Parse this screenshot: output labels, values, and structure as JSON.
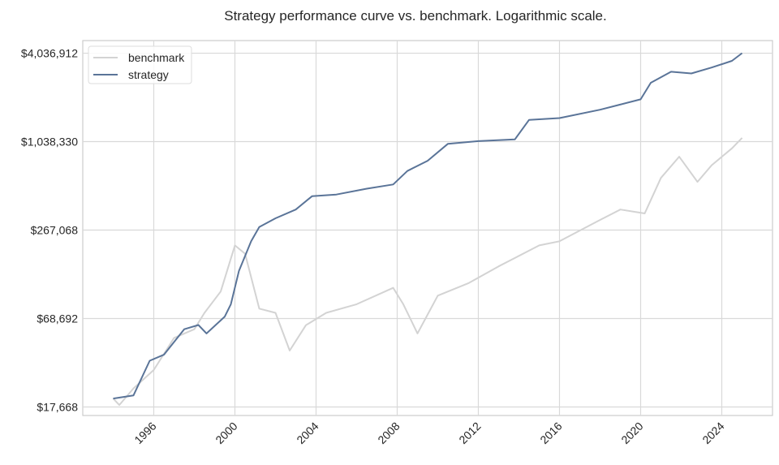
{
  "chart_data": {
    "type": "line",
    "title": "Strategy performance curve vs. benchmark. Logarithmic scale.",
    "xlabel": "",
    "ylabel": "",
    "y_scale": "log",
    "xlim": [
      1992.5,
      2026.5
    ],
    "ylim": [
      15500,
      4900000
    ],
    "y_ticks": [
      17668,
      68692,
      267068,
      1038330,
      4036912
    ],
    "y_tick_labels": [
      "$17,668",
      "$68,692",
      "$267,068",
      "$1,038,330",
      "$4,036,912"
    ],
    "x_ticks": [
      1996,
      2000,
      2004,
      2008,
      2012,
      2016,
      2020,
      2024
    ],
    "x_tick_labels": [
      "1996",
      "2000",
      "2004",
      "2008",
      "2012",
      "2016",
      "2020",
      "2024"
    ],
    "grid": true,
    "legend_placement": "top-left",
    "series": [
      {
        "name": "benchmark",
        "color": "#d3d3d3",
        "x": [
          1994.0,
          1994.3,
          1995,
          1996,
          1997,
          1998,
          1998.5,
          1999.3,
          2000.0,
          2000.5,
          2001.2,
          2002,
          2002.7,
          2003.5,
          2004.5,
          2006,
          2007.8,
          2008.3,
          2009.0,
          2010,
          2011.5,
          2013,
          2015,
          2016,
          2018,
          2019,
          2020.2,
          2021,
          2021.9,
          2022.8,
          2023.5,
          2024.5,
          2025
        ],
        "y": [
          20100,
          18200,
          23500,
          31200,
          51000,
          58300,
          75000,
          104000,
          211000,
          186000,
          80000,
          75000,
          42000,
          62000,
          75000,
          85500,
          110000,
          85500,
          54600,
          97600,
          118000,
          153000,
          211000,
          225000,
          312000,
          366000,
          345000,
          595000,
          824000,
          560000,
          723000,
          937000,
          1100000
        ]
      },
      {
        "name": "strategy",
        "color": "#5a7498",
        "x": [
          1994.0,
          1995.0,
          1995.8,
          1996.5,
          1997.5,
          1998.2,
          1998.6,
          1999.5,
          1999.8,
          2000.2,
          2000.8,
          2001.2,
          2002.0,
          2003.0,
          2003.8,
          2005,
          2006.5,
          2007.8,
          2008.5,
          2009.5,
          2010.5,
          2012,
          2013.8,
          2014.5,
          2016,
          2018,
          2020,
          2020.5,
          2021.5,
          2022.5,
          2023.5,
          2024.5,
          2025
        ],
        "y": [
          20100,
          21100,
          35930,
          39400,
          58300,
          62200,
          54600,
          70800,
          85500,
          143000,
          225000,
          280000,
          320000,
          366000,
          449000,
          461000,
          504000,
          538000,
          662000,
          774000,
          1005000,
          1046000,
          1074000,
          1450000,
          1490000,
          1695000,
          1987000,
          2563000,
          3037000,
          2960000,
          3240000,
          3590000,
          4037000
        ]
      }
    ]
  }
}
